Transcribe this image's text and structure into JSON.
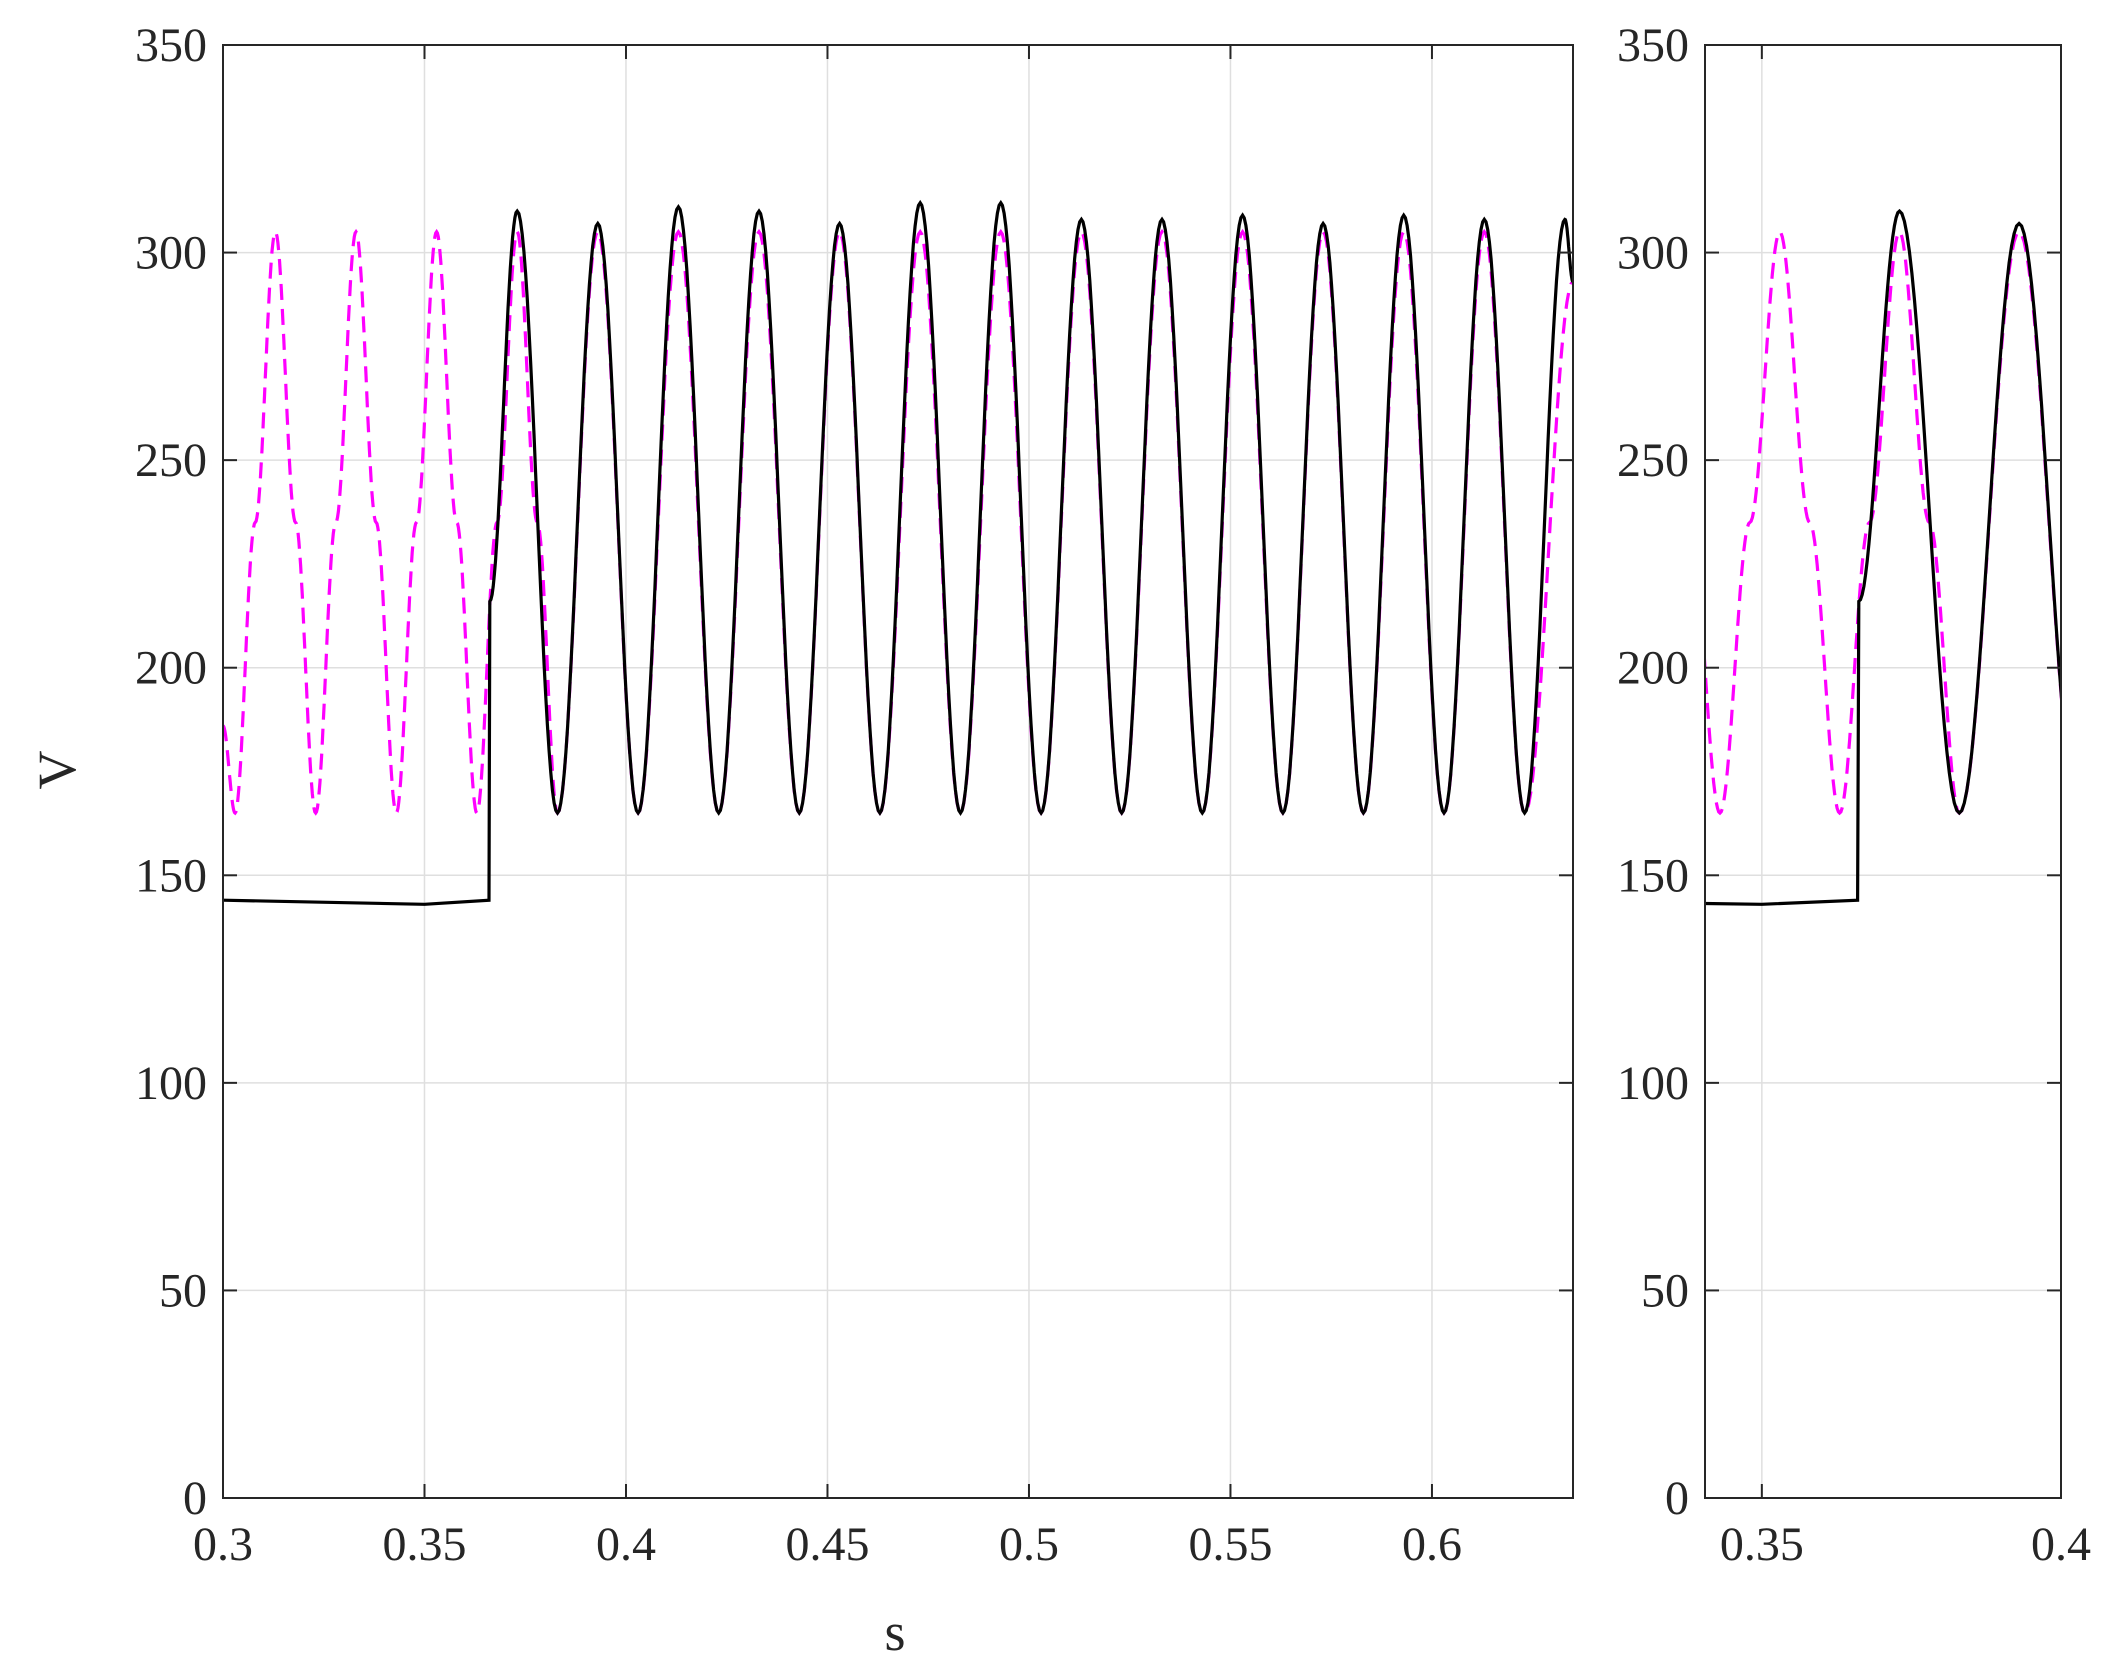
{
  "chart_data": [
    {
      "type": "line",
      "title": "",
      "xlabel": "s",
      "ylabel": "V",
      "xlim": [
        0.3,
        0.635
      ],
      "ylim": [
        0,
        350
      ],
      "xticks": [
        0.3,
        0.35,
        0.4,
        0.45,
        0.5,
        0.55,
        0.6
      ],
      "xtick_labels": [
        "0.3",
        "0.35",
        "0.4",
        "0.45",
        "0.5",
        "0.55",
        "0.6"
      ],
      "yticks": [
        0,
        50,
        100,
        150,
        200,
        250,
        300,
        350
      ],
      "ytick_labels": [
        "0",
        "50",
        "100",
        "150",
        "200",
        "250",
        "300",
        "350"
      ],
      "grid": true,
      "series": [
        {
          "style": "dashed",
          "color": "#ff00ff",
          "description_values": {
            "min": 165,
            "max": 305,
            "period": 0.02,
            "first_peak_x": 0.313
          },
          "x": [
            0.3,
            0.303,
            0.308,
            0.313,
            0.318,
            0.323,
            0.328,
            0.333,
            0.338,
            0.343,
            0.348,
            0.353,
            0.358,
            0.363,
            0.368,
            0.373,
            0.378,
            0.383,
            0.393,
            0.403,
            0.413,
            0.423,
            0.433,
            0.443,
            0.453,
            0.463,
            0.473,
            0.483,
            0.493,
            0.503,
            0.513,
            0.523,
            0.533,
            0.543,
            0.553,
            0.563,
            0.573,
            0.583,
            0.593,
            0.603,
            0.613,
            0.623,
            0.635
          ],
          "y": [
            186,
            165,
            235,
            305,
            235,
            165,
            235,
            305,
            235,
            165,
            235,
            305,
            235,
            165,
            235,
            305,
            235,
            165,
            305,
            165,
            305,
            165,
            305,
            165,
            305,
            165,
            305,
            165,
            305,
            165,
            305,
            165,
            305,
            165,
            305,
            165,
            305,
            165,
            305,
            165,
            305,
            165,
            293
          ]
        },
        {
          "style": "solid",
          "color": "#000000",
          "x": [
            0.3,
            0.35,
            0.366,
            0.3662,
            0.373,
            0.383,
            0.393,
            0.403,
            0.413,
            0.423,
            0.433,
            0.443,
            0.453,
            0.463,
            0.473,
            0.483,
            0.493,
            0.503,
            0.513,
            0.523,
            0.533,
            0.543,
            0.553,
            0.563,
            0.573,
            0.583,
            0.593,
            0.603,
            0.613,
            0.623,
            0.633,
            0.635
          ],
          "y": [
            144,
            143,
            144,
            216,
            310,
            165,
            307,
            165,
            311,
            165,
            310,
            165,
            307,
            165,
            312,
            165,
            312,
            165,
            308,
            165,
            308,
            165,
            309,
            165,
            307,
            165,
            309,
            165,
            308,
            165,
            308,
            293
          ]
        }
      ]
    },
    {
      "type": "line",
      "title": "",
      "xlabel": "",
      "ylabel": "",
      "xlim": [
        0.3405,
        0.4
      ],
      "ylim": [
        0,
        350
      ],
      "xticks": [
        0.35,
        0.4
      ],
      "xtick_labels": [
        "0.35",
        "0.4"
      ],
      "yticks": [
        0,
        50,
        100,
        150,
        200,
        250,
        300,
        350
      ],
      "ytick_labels": [
        "0",
        "50",
        "100",
        "150",
        "200",
        "250",
        "300",
        "350"
      ],
      "grid": true
    }
  ]
}
